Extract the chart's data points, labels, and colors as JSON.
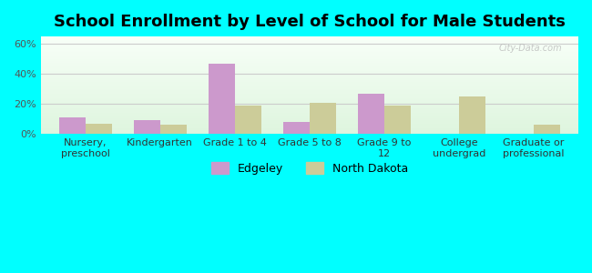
{
  "title": "School Enrollment by Level of School for Male Students",
  "categories": [
    "Nursery,\npreschool",
    "Kindergarten",
    "Grade 1 to 4",
    "Grade 5 to 8",
    "Grade 9 to\n12",
    "College\nundergrad",
    "Graduate or\nprofessional"
  ],
  "edgeley": [
    11,
    9,
    47,
    8,
    27,
    0,
    0
  ],
  "north_dakota": [
    7,
    6,
    19,
    21,
    19,
    25,
    6
  ],
  "edgeley_color": "#cc99cc",
  "north_dakota_color": "#cccc99",
  "bar_width": 0.35,
  "ylim": [
    0,
    65
  ],
  "yticks": [
    0,
    20,
    40,
    60
  ],
  "ytick_labels": [
    "0%",
    "20%",
    "40%",
    "60%"
  ],
  "background_outer": "#00ffff",
  "grid_color": "#cccccc",
  "title_fontsize": 13,
  "tick_fontsize": 8,
  "legend_fontsize": 9,
  "watermark": "City-Data.com"
}
